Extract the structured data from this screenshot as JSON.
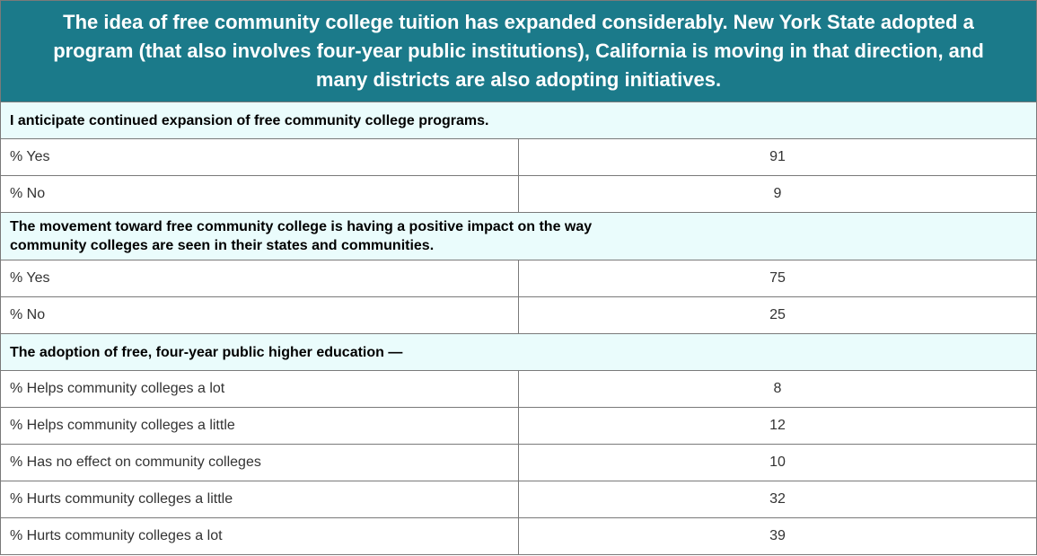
{
  "chart_data": {
    "type": "table",
    "title": "The idea of free community college tuition has expanded considerably. New York State adopted a program (that also involves four-year public institutions), California is moving in that direction, and many districts are also adopting initiatives.",
    "sections": [
      {
        "heading": "I anticipate continued expansion of free community college programs.",
        "rows": [
          {
            "label": "% Yes",
            "value": "91"
          },
          {
            "label": "% No",
            "value": "9"
          }
        ]
      },
      {
        "heading": "The movement toward free community college is having a positive impact on the way community colleges are seen in their states and communities.",
        "rows": [
          {
            "label": "% Yes",
            "value": "75"
          },
          {
            "label": "% No",
            "value": "25"
          }
        ]
      },
      {
        "heading": "The adoption of free, four-year public higher education —",
        "rows": [
          {
            "label": "% Helps community colleges a lot",
            "value": "8"
          },
          {
            "label": "% Helps community colleges a little",
            "value": "12"
          },
          {
            "label": "% Has no effect on community colleges",
            "value": "10"
          },
          {
            "label": "% Hurts community colleges a little",
            "value": "32"
          },
          {
            "label": "% Hurts community colleges a lot",
            "value": "39"
          }
        ]
      }
    ],
    "colors": {
      "header_background": "#1b7a8a",
      "header_text": "#ffffff",
      "section_background": "#eafcfc",
      "border": "#7a7a7a"
    }
  }
}
